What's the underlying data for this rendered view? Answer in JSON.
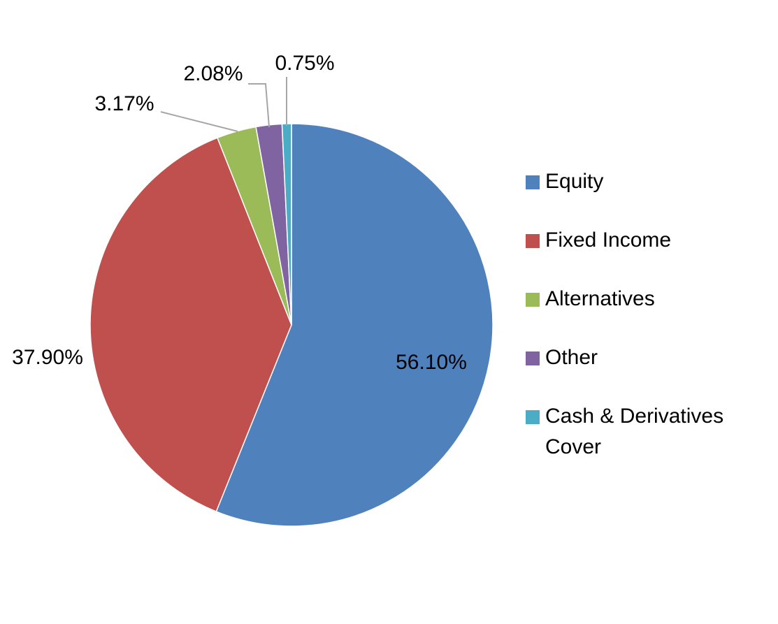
{
  "chart_data": {
    "type": "pie",
    "categories": [
      "Equity",
      "Fixed Income",
      "Alternatives",
      "Other",
      "Cash & Derivatives Cover"
    ],
    "values": [
      56.1,
      37.9,
      3.17,
      2.08,
      0.75
    ],
    "value_labels": [
      "56.10%",
      "37.90%",
      "3.17%",
      "2.08%",
      "0.75%"
    ],
    "colors": [
      "#4f81bd",
      "#c0504d",
      "#9bbb59",
      "#8064a2",
      "#4bacc6"
    ],
    "legend": "right"
  }
}
